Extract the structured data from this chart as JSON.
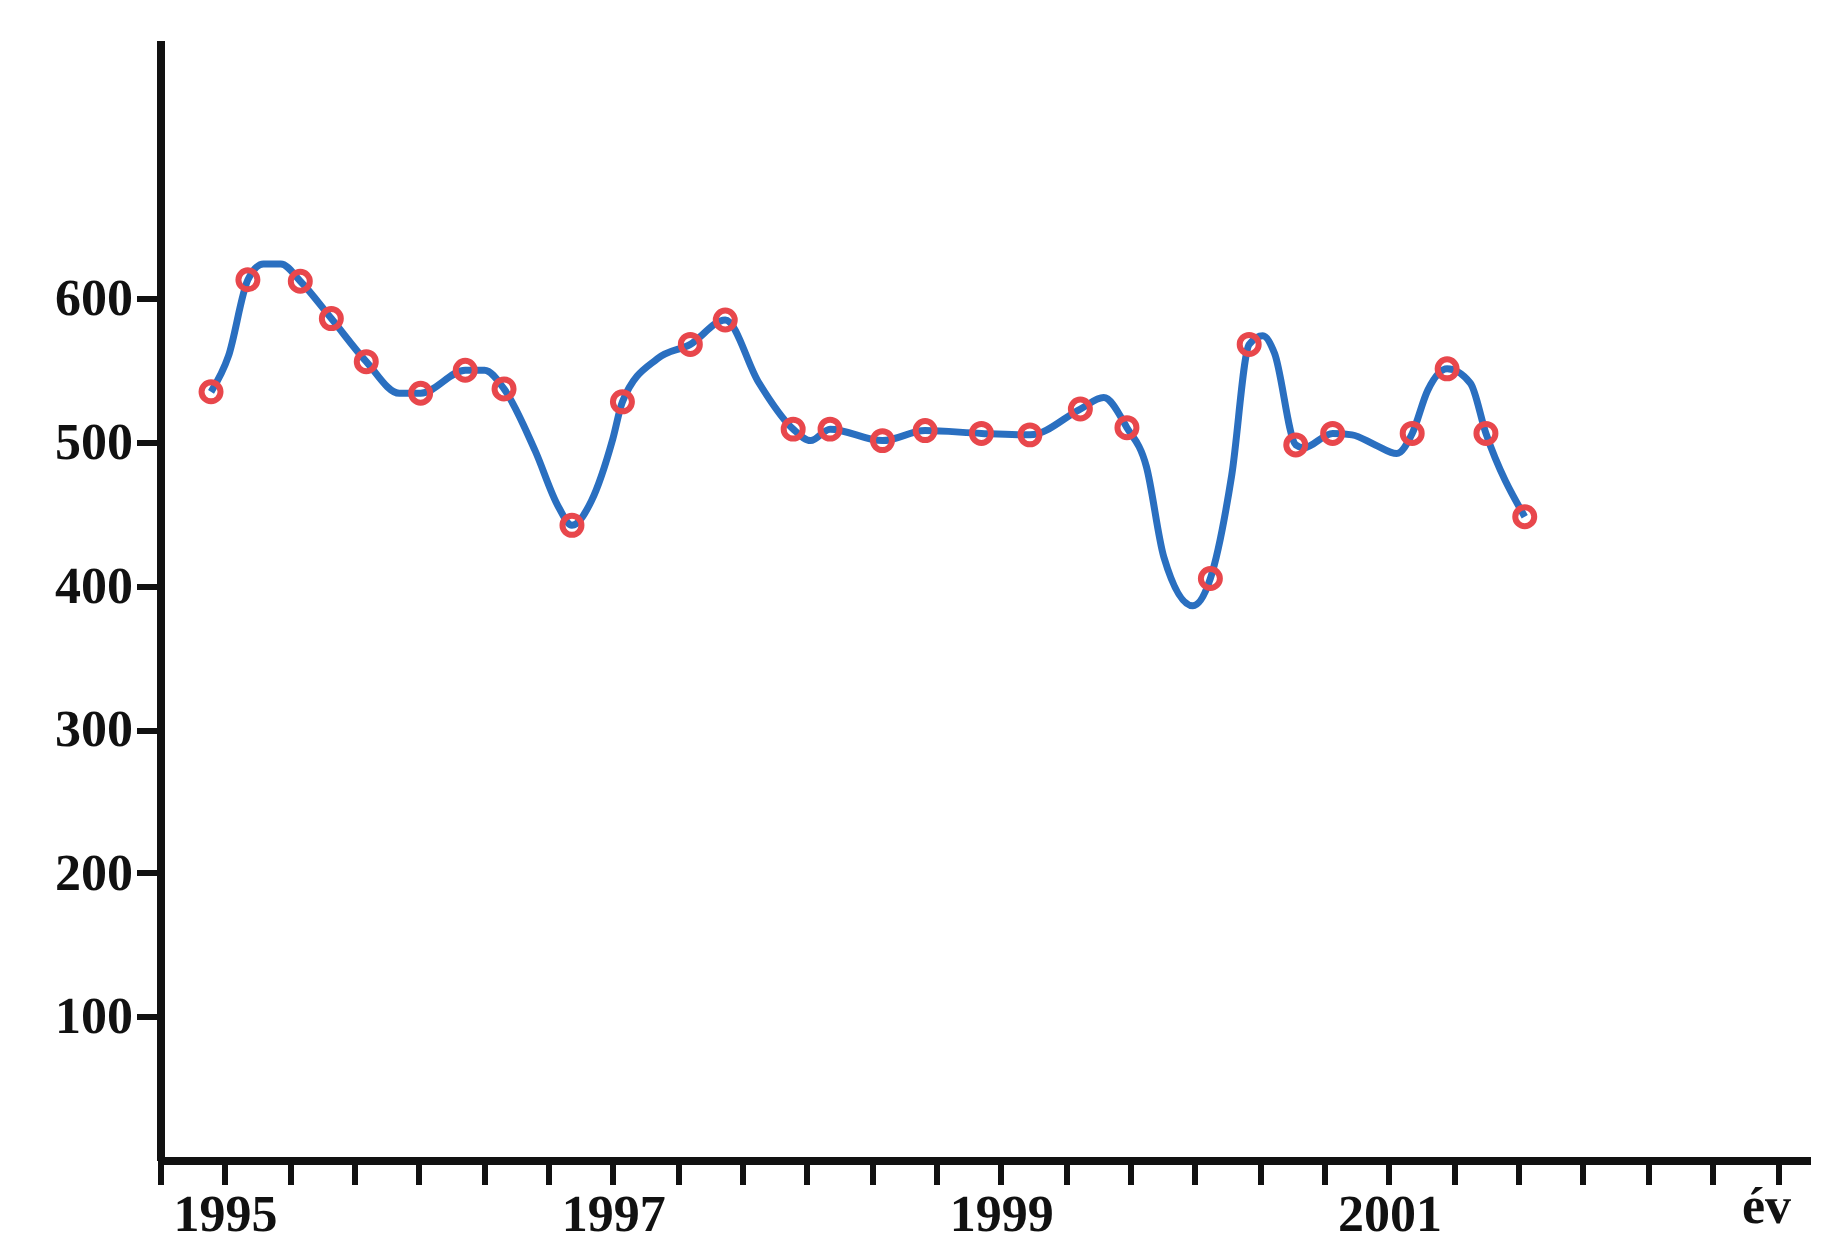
{
  "chart_data": {
    "type": "line",
    "xlabel": "év",
    "xlim": [
      1994.667,
      2003.17
    ],
    "ylim": [
      0,
      780
    ],
    "xticks": [
      {
        "value": 1994.667,
        "label": null
      },
      {
        "value": 1995,
        "label": "1995"
      },
      {
        "value": 1995.333,
        "label": null
      },
      {
        "value": 1995.667,
        "label": null
      },
      {
        "value": 1996,
        "label": null
      },
      {
        "value": 1996.333,
        "label": null
      },
      {
        "value": 1996.667,
        "label": null
      },
      {
        "value": 1997,
        "label": "1997"
      },
      {
        "value": 1997.333,
        "label": null
      },
      {
        "value": 1997.667,
        "label": null
      },
      {
        "value": 1998,
        "label": null
      },
      {
        "value": 1998.333,
        "label": null
      },
      {
        "value": 1998.667,
        "label": null
      },
      {
        "value": 1999,
        "label": "1999"
      },
      {
        "value": 1999.333,
        "label": null
      },
      {
        "value": 1999.667,
        "label": null
      },
      {
        "value": 2000,
        "label": null
      },
      {
        "value": 2000.333,
        "label": null
      },
      {
        "value": 2000.667,
        "label": null
      },
      {
        "value": 2001,
        "label": "2001"
      },
      {
        "value": 2001.333,
        "label": null
      },
      {
        "value": 2001.667,
        "label": null
      },
      {
        "value": 2002,
        "label": null
      },
      {
        "value": 2002.333,
        "label": null
      },
      {
        "value": 2002.667,
        "label": null
      },
      {
        "value": 2003,
        "label": null
      }
    ],
    "yticks": [
      100,
      200,
      300,
      400,
      500,
      600
    ],
    "grid": false,
    "series": [
      {
        "marker": "none",
        "line_style": "solid",
        "color": "#2a6fc0",
        "x": [
          1994.93,
          1995.02,
          1995.12,
          1995.2,
          1995.29,
          1995.39,
          1995.55,
          1995.73,
          1995.9,
          1996.01,
          1996.24,
          1996.34,
          1996.44,
          1996.6,
          1996.72,
          1996.79,
          1996.89,
          1997.0,
          1997.05,
          1997.23,
          1997.4,
          1997.58,
          1997.75,
          1997.93,
          1998.02,
          1998.12,
          1998.39,
          1998.61,
          1998.9,
          1999.15,
          1999.41,
          1999.53,
          1999.65,
          1999.75,
          1999.84,
          1999.99,
          2000.08,
          2000.19,
          2000.28,
          2000.35,
          2000.41,
          2000.52,
          2000.56,
          2000.71,
          2000.81,
          2000.93,
          2001.04,
          2001.12,
          2001.2,
          2001.3,
          2001.42,
          2001.5,
          2001.7
        ],
        "values": [
          535,
          560,
          613,
          624,
          624,
          612,
          586,
          556,
          534,
          534,
          550,
          550,
          537,
          494,
          455,
          442,
          459,
          502,
          528,
          558,
          568,
          585,
          542,
          509,
          501,
          509,
          501,
          508,
          506,
          505,
          523,
          531,
          510,
          483,
          420,
          386,
          405,
          477,
          568,
          574,
          562,
          498,
          496,
          506,
          505,
          498,
          492,
          506,
          536,
          551,
          541,
          506,
          448
        ]
      },
      {
        "type": "scatter",
        "marker": "circle",
        "color": "#e8474c",
        "x": [
          1994.93,
          1995.12,
          1995.39,
          1995.55,
          1995.73,
          1996.01,
          1996.24,
          1996.44,
          1996.79,
          1997.05,
          1997.4,
          1997.58,
          1997.93,
          1998.12,
          1998.39,
          1998.61,
          1998.9,
          1999.15,
          1999.41,
          1999.65,
          2000.08,
          2000.28,
          2000.52,
          2000.71,
          2001.12,
          2001.3,
          2001.5,
          2001.7
        ],
        "values": [
          535,
          613,
          612,
          586,
          556,
          534,
          550,
          537,
          442,
          528,
          568,
          585,
          509,
          509,
          501,
          508,
          506,
          505,
          523,
          510,
          405,
          568,
          498,
          506,
          506,
          551,
          506,
          448
        ]
      }
    ]
  }
}
